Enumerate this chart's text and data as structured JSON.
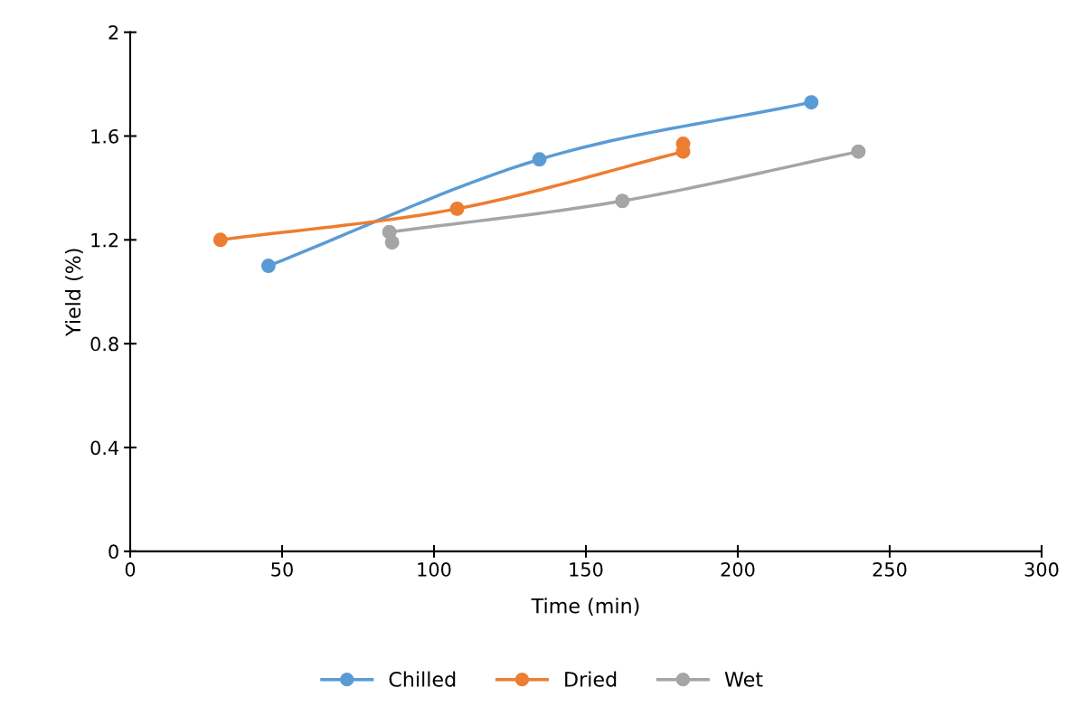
{
  "chart_data": {
    "type": "line",
    "xlabel": "Time (min)",
    "ylabel": "Yield (%)",
    "xlim": [
      0,
      300
    ],
    "xticks": [
      0,
      50,
      100,
      150,
      200,
      250,
      300
    ],
    "ylim": [
      0,
      2
    ],
    "yticks": [
      0,
      0.4,
      0.8,
      1.2,
      1.6,
      2
    ],
    "grid": false,
    "legend": "bottom",
    "marker": "circle",
    "line_style": "solid",
    "series": [
      {
        "name": "Chilled",
        "color": "#5b9bd5",
        "x": [
          45.5,
          134.7,
          224.2
        ],
        "values": [
          1.1,
          1.51,
          1.73
        ]
      },
      {
        "name": "Dried",
        "color": "#ed7d31",
        "x": [
          29.7,
          107.6,
          182,
          182
        ],
        "values": [
          1.2,
          1.32,
          1.54,
          1.57
        ]
      },
      {
        "name": "Wet",
        "color": "#a5a5a5",
        "x": [
          86.2,
          85.3,
          162,
          239.7
        ],
        "values": [
          1.19,
          1.23,
          1.35,
          1.54
        ]
      }
    ]
  }
}
